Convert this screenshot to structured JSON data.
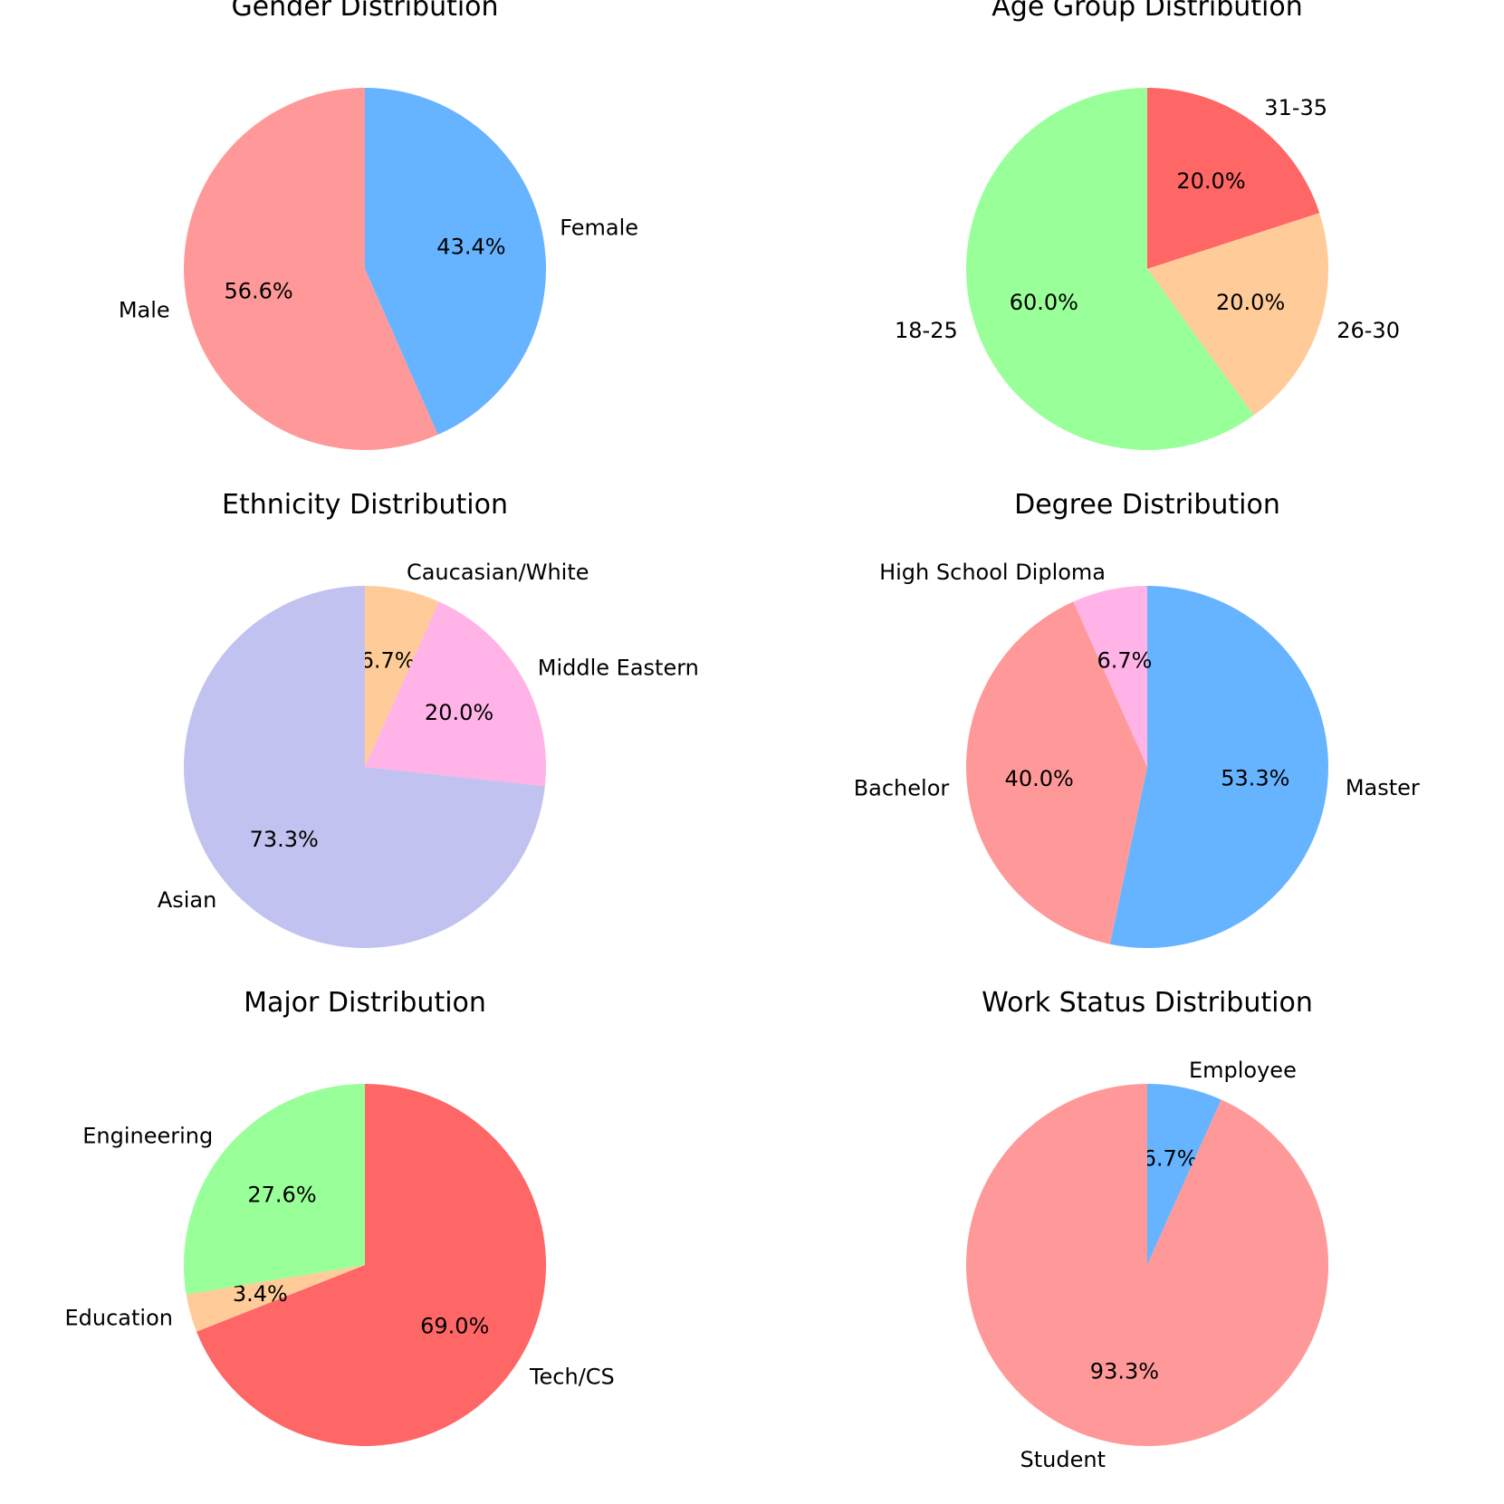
{
  "chart_data": [
    {
      "type": "pie",
      "title": "Gender Distribution",
      "start_angle": 90,
      "direction": "clockwise",
      "slices": [
        {
          "label": "Female",
          "value": 43.4,
          "pct_label": "43.4%",
          "color": "#66b3ff"
        },
        {
          "label": "Male",
          "value": 56.6,
          "pct_label": "56.6%",
          "color": "#ff9999"
        }
      ]
    },
    {
      "type": "pie",
      "title": "Age Group Distribution",
      "start_angle": 90,
      "direction": "clockwise",
      "slices": [
        {
          "label": "31-35",
          "value": 20.0,
          "pct_label": "20.0%",
          "color": "#ff6666"
        },
        {
          "label": "26-30",
          "value": 20.0,
          "pct_label": "20.0%",
          "color": "#ffcc99"
        },
        {
          "label": "18-25",
          "value": 60.0,
          "pct_label": "60.0%",
          "color": "#99ff99"
        }
      ]
    },
    {
      "type": "pie",
      "title": "Ethnicity Distribution",
      "start_angle": 90,
      "direction": "clockwise",
      "slices": [
        {
          "label": "Caucasian/White",
          "value": 6.7,
          "pct_label": "6.7%",
          "color": "#ffcc99"
        },
        {
          "label": "Middle Eastern",
          "value": 20.0,
          "pct_label": "20.0%",
          "color": "#ffb3e6"
        },
        {
          "label": "Asian",
          "value": 73.3,
          "pct_label": "73.3%",
          "color": "#c2c2f0"
        }
      ]
    },
    {
      "type": "pie",
      "title": "Degree Distribution",
      "start_angle": 90,
      "direction": "clockwise",
      "slices": [
        {
          "label": "Master",
          "value": 53.3,
          "pct_label": "53.3%",
          "color": "#66b3ff"
        },
        {
          "label": "Bachelor",
          "value": 40.0,
          "pct_label": "40.0%",
          "color": "#ff9999"
        },
        {
          "label": "High School Diploma",
          "value": 6.7,
          "pct_label": "6.7%",
          "color": "#ffb3e6"
        }
      ]
    },
    {
      "type": "pie",
      "title": "Major Distribution",
      "start_angle": 90,
      "direction": "clockwise",
      "slices": [
        {
          "label": "Tech/CS",
          "value": 69.0,
          "pct_label": "69.0%",
          "color": "#ff6666"
        },
        {
          "label": "Education",
          "value": 3.4,
          "pct_label": "3.4%",
          "color": "#ffcc99"
        },
        {
          "label": "Engineering",
          "value": 27.6,
          "pct_label": "27.6%",
          "color": "#99ff99"
        }
      ]
    },
    {
      "type": "pie",
      "title": "Work Status Distribution",
      "start_angle": 90,
      "direction": "clockwise",
      "slices": [
        {
          "label": "Employee",
          "value": 6.7,
          "pct_label": "6.7%",
          "color": "#66b3ff"
        },
        {
          "label": "Student",
          "value": 93.3,
          "pct_label": "93.3%",
          "color": "#ff9999"
        }
      ]
    }
  ]
}
